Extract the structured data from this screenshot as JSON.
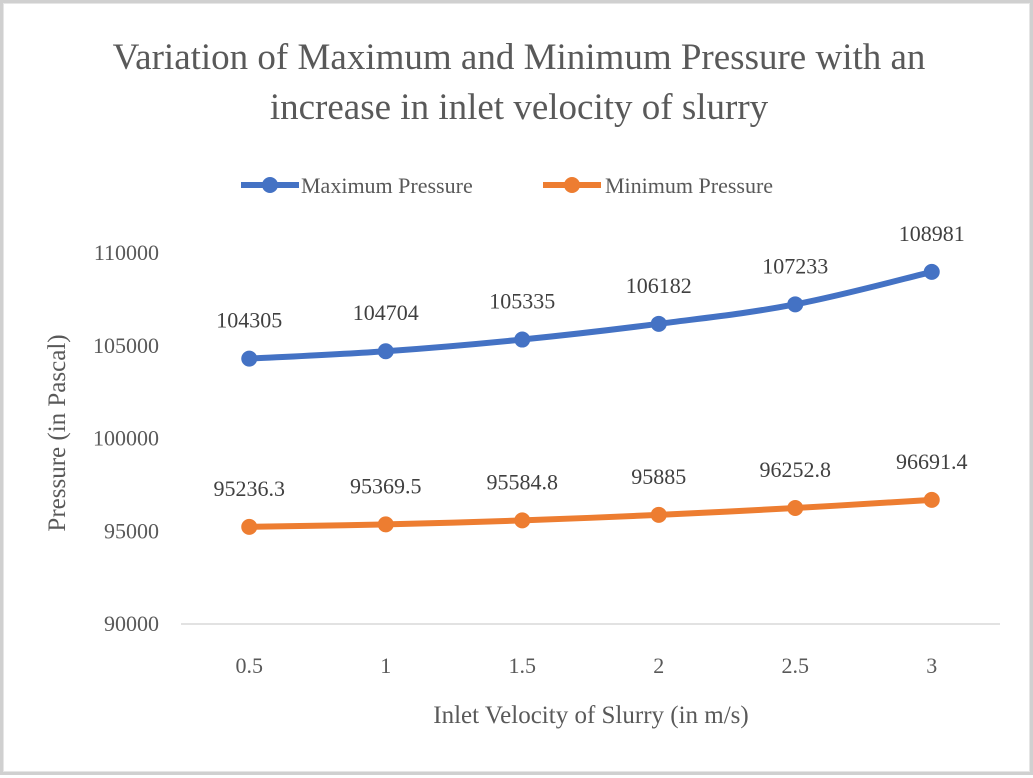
{
  "chart_data": {
    "type": "line",
    "title_lines": [
      "Variation of Maximum and Minimum Pressure with an",
      "increase in inlet velocity of slurry"
    ],
    "xlabel": "Inlet Velocity of Slurry (in m/s)",
    "ylabel": "Pressure (in Pascal)",
    "categories": [
      "0.5",
      "1",
      "1.5",
      "2",
      "2.5",
      "3"
    ],
    "ylim": [
      90000,
      110000
    ],
    "yticks": [
      90000,
      95000,
      100000,
      105000,
      110000
    ],
    "grid": false,
    "legend_position": "top",
    "series": [
      {
        "name": "Maximum Pressure",
        "color": "#4472C4",
        "values": [
          104305,
          104704,
          105335,
          106182,
          107233,
          108981
        ],
        "labels": [
          "104305",
          "104704",
          "105335",
          "106182",
          "107233",
          "108981"
        ]
      },
      {
        "name": "Minimum Pressure",
        "color": "#ED7D31",
        "values": [
          95236.3,
          95369.5,
          95584.8,
          95885,
          96252.8,
          96691.4
        ],
        "labels": [
          "95236.3",
          "95369.5",
          "95584.8",
          "95885",
          "96252.8",
          "96691.4"
        ]
      }
    ]
  }
}
